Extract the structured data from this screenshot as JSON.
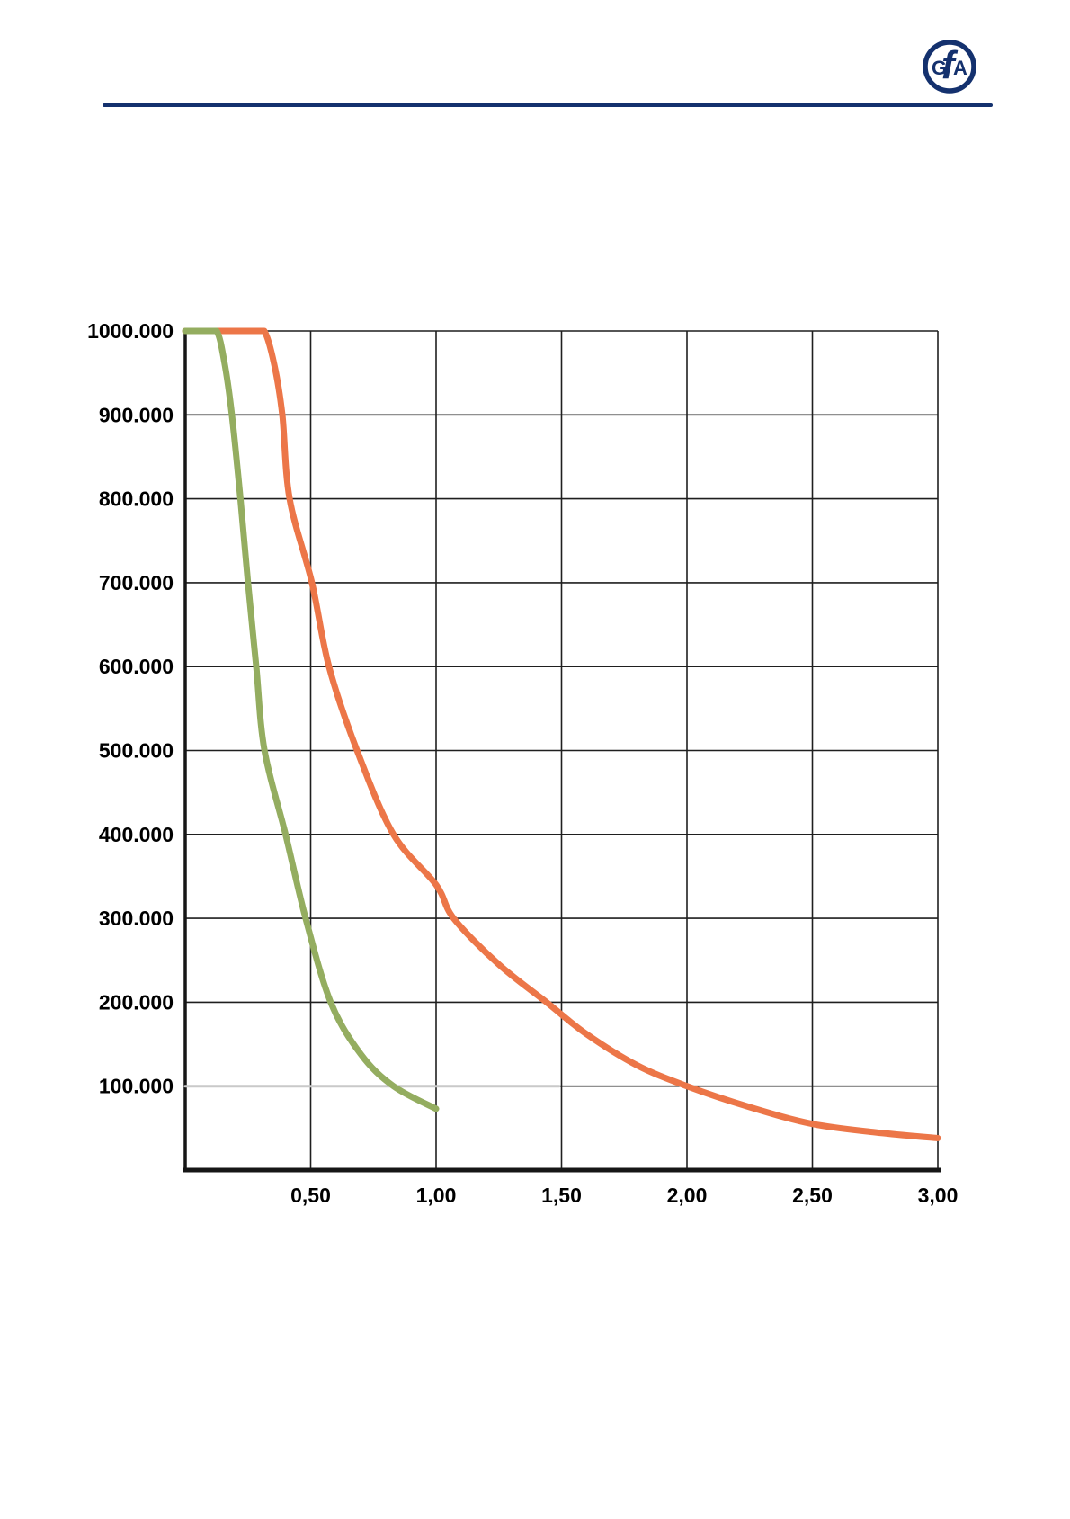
{
  "header": {
    "logo": {
      "letter_g": "G",
      "letter_f": "f",
      "letter_a": "A",
      "color": "#14316e"
    },
    "rule_color": "#14316e"
  },
  "chart_data": {
    "type": "line",
    "title": "",
    "xlabel": "",
    "ylabel": "",
    "xlim": [
      0,
      3
    ],
    "ylim": [
      0,
      1000000
    ],
    "grid": true,
    "legend": "none",
    "x_ticks": [
      {
        "value": 0.5,
        "label": "0,50"
      },
      {
        "value": 1.0,
        "label": "1,00"
      },
      {
        "value": 1.5,
        "label": "1,50"
      },
      {
        "value": 2.0,
        "label": "2,00"
      },
      {
        "value": 2.5,
        "label": "2,50"
      },
      {
        "value": 3.0,
        "label": "3,00"
      }
    ],
    "y_ticks": [
      {
        "value": 1000000,
        "label": "1000.000"
      },
      {
        "value": 900000,
        "label": "900.000"
      },
      {
        "value": 800000,
        "label": "800.000"
      },
      {
        "value": 700000,
        "label": "700.000"
      },
      {
        "value": 600000,
        "label": "600.000"
      },
      {
        "value": 500000,
        "label": "500.000"
      },
      {
        "value": 400000,
        "label": "400.000"
      },
      {
        "value": 300000,
        "label": "300.000"
      },
      {
        "value": 200000,
        "label": "200.000"
      },
      {
        "value": 100000,
        "label": "100.000"
      }
    ],
    "series": [
      {
        "name": "gray-reference-100000",
        "color": "#c9c9c9",
        "width": 3,
        "x": [
          0,
          1.49
        ],
        "y": [
          100000,
          100000
        ]
      },
      {
        "name": "orange-curve",
        "color": "#ec7648",
        "width": 7,
        "x": [
          0,
          0.15,
          0.27,
          0.315,
          0.355,
          0.387,
          0.416,
          0.505,
          0.573,
          0.685,
          0.83,
          1.0,
          1.07,
          1.25,
          1.44,
          1.6,
          1.8,
          2.0,
          2.25,
          2.5,
          2.75,
          3.0
        ],
        "y": [
          1000000,
          1000000,
          1000000,
          1000000,
          960000,
          900000,
          800000,
          700000,
          600000,
          500000,
          400000,
          340000,
          300000,
          245000,
          200000,
          162000,
          125000,
          100000,
          75000,
          55000,
          45000,
          38000
        ]
      },
      {
        "name": "green-curve",
        "color": "#94ad60",
        "width": 7,
        "x": [
          0,
          0.08,
          0.125,
          0.155,
          0.186,
          0.22,
          0.25,
          0.283,
          0.316,
          0.4,
          0.48,
          0.58,
          0.7,
          0.83,
          1.0
        ],
        "y": [
          1000000,
          1000000,
          1000000,
          965000,
          900000,
          800000,
          700000,
          600000,
          500000,
          400000,
          300000,
          200000,
          138000,
          100000,
          73000
        ]
      }
    ],
    "styles": {
      "grid_color": "#1f1f1f",
      "axis_color": "#161616",
      "label_color": "#000000",
      "label_size": 23
    }
  }
}
